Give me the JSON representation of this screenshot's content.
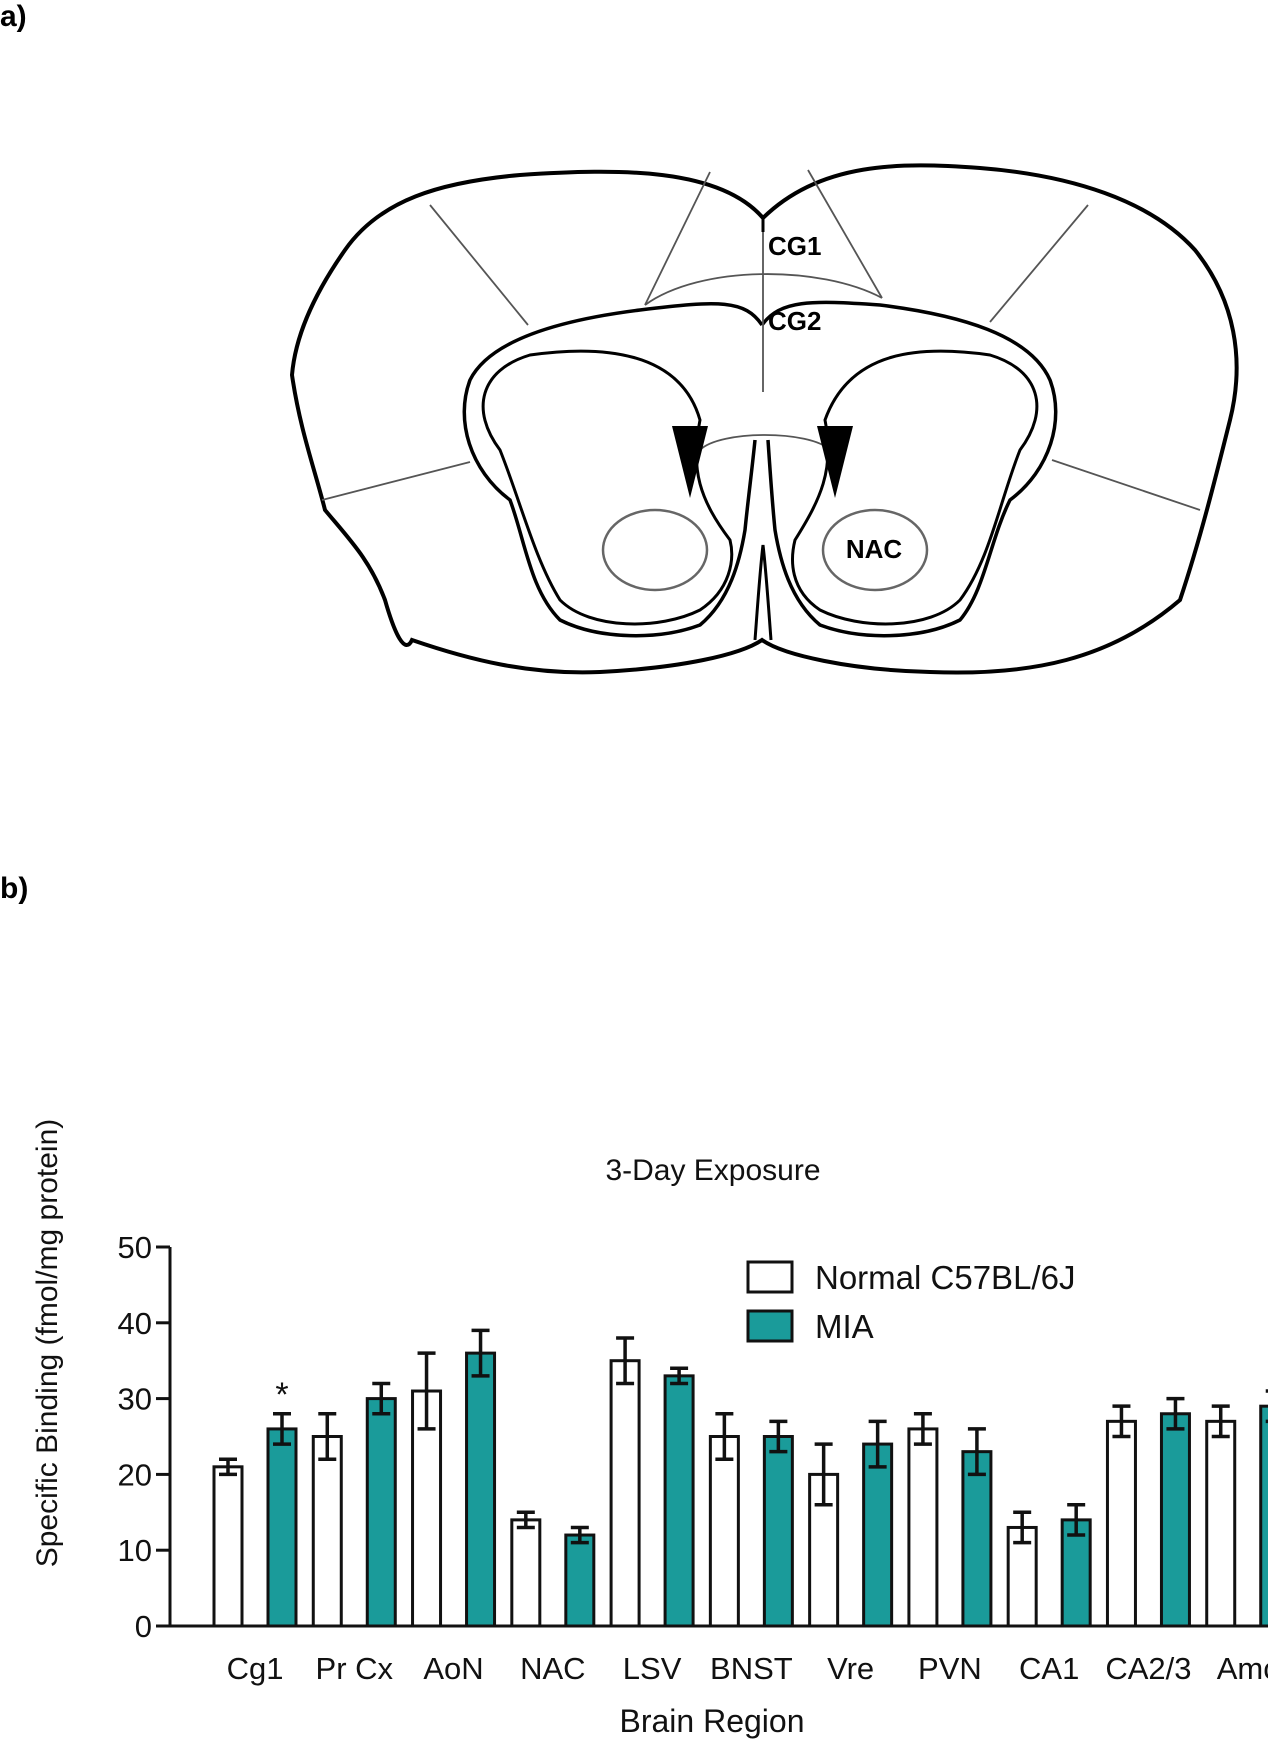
{
  "panels": {
    "a_label": "a)",
    "b_label": "b)"
  },
  "diagram": {
    "labels": {
      "cg1": "CG1",
      "cg2": "CG2",
      "nac": "NAC"
    },
    "colors": {
      "outline": "#000000",
      "region_line": "#555555",
      "arrow": "#000000"
    }
  },
  "chart_data": {
    "type": "bar",
    "title": "3-Day Exposure",
    "xlabel": "Brain Region",
    "ylabel": "Specific Binding (fmol/mg protein)",
    "ylim": [
      0,
      50
    ],
    "yticks": [
      0,
      10,
      20,
      30,
      40,
      50
    ],
    "ytick_labels": [
      "0",
      "10",
      "20",
      "30",
      "40",
      "50"
    ],
    "legend_position": "top-right",
    "categories": [
      "Cg1",
      "Pr Cx",
      "AoN",
      "NAC",
      "LSV",
      "BNST",
      "Vre",
      "PVN",
      "CA1",
      "CA2/3",
      "Amc"
    ],
    "series": [
      {
        "name": "Normal C57BL/6J",
        "color": "#ffffff",
        "values": [
          21,
          25,
          31,
          14,
          35,
          25,
          20,
          26,
          13,
          27,
          27
        ],
        "errors": [
          1,
          3,
          5,
          1,
          3,
          3,
          4,
          2,
          2,
          2,
          2
        ]
      },
      {
        "name": "MIA",
        "color": "#1a9b9a",
        "values": [
          26,
          30,
          36,
          12,
          33,
          25,
          24,
          23,
          14,
          28,
          29
        ],
        "errors": [
          2,
          2,
          3,
          1,
          1,
          2,
          3,
          3,
          2,
          2,
          2
        ]
      }
    ],
    "annotations": [
      {
        "text": "*",
        "category": "Cg1",
        "series": "MIA"
      }
    ]
  }
}
